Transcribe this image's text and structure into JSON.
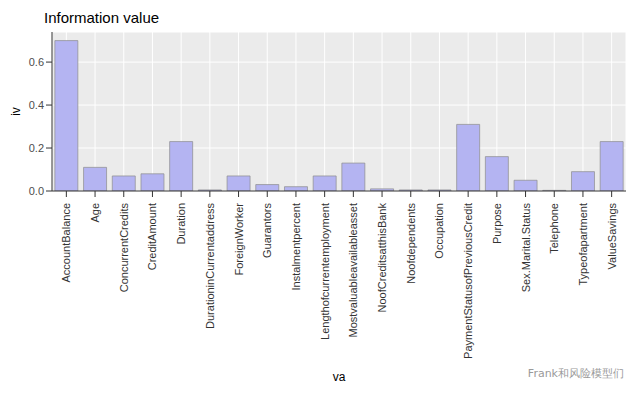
{
  "chart_data": {
    "type": "bar",
    "title": "Information value",
    "x_label": "va",
    "y_label": "iv",
    "annotations": [
      "Frank和风险模型们"
    ],
    "categories": [
      "AccountBalance",
      "Age",
      "ConcurrentCredits",
      "CreditAmount",
      "Duration",
      "DurationinCurrentaddress",
      "ForeignWorker",
      "Guarantors",
      "Instalmentpercent",
      "Lengthofcurrentemployment",
      "Mostvaluableavailableasset",
      "NoofCreditsatthisBank",
      "Noofdependents",
      "Occupation",
      "PaymentStatusofPreviousCredit",
      "Purpose",
      "Sex.Marital.Status",
      "Telephone",
      "Typeofapartment",
      "ValueSavings"
    ],
    "values": [
      0.7,
      0.11,
      0.07,
      0.08,
      0.23,
      0.005,
      0.07,
      0.03,
      0.02,
      0.07,
      0.13,
      0.01,
      0.005,
      0.005,
      0.31,
      0.16,
      0.05,
      0.003,
      0.09,
      0.23
    ],
    "color": "#b4b4f2",
    "ylim": [
      0,
      0.74
    ],
    "yticks": [
      {
        "value": 0,
        "label": "0.0"
      },
      0.2,
      0.4,
      0.6
    ],
    "grid": true
  }
}
